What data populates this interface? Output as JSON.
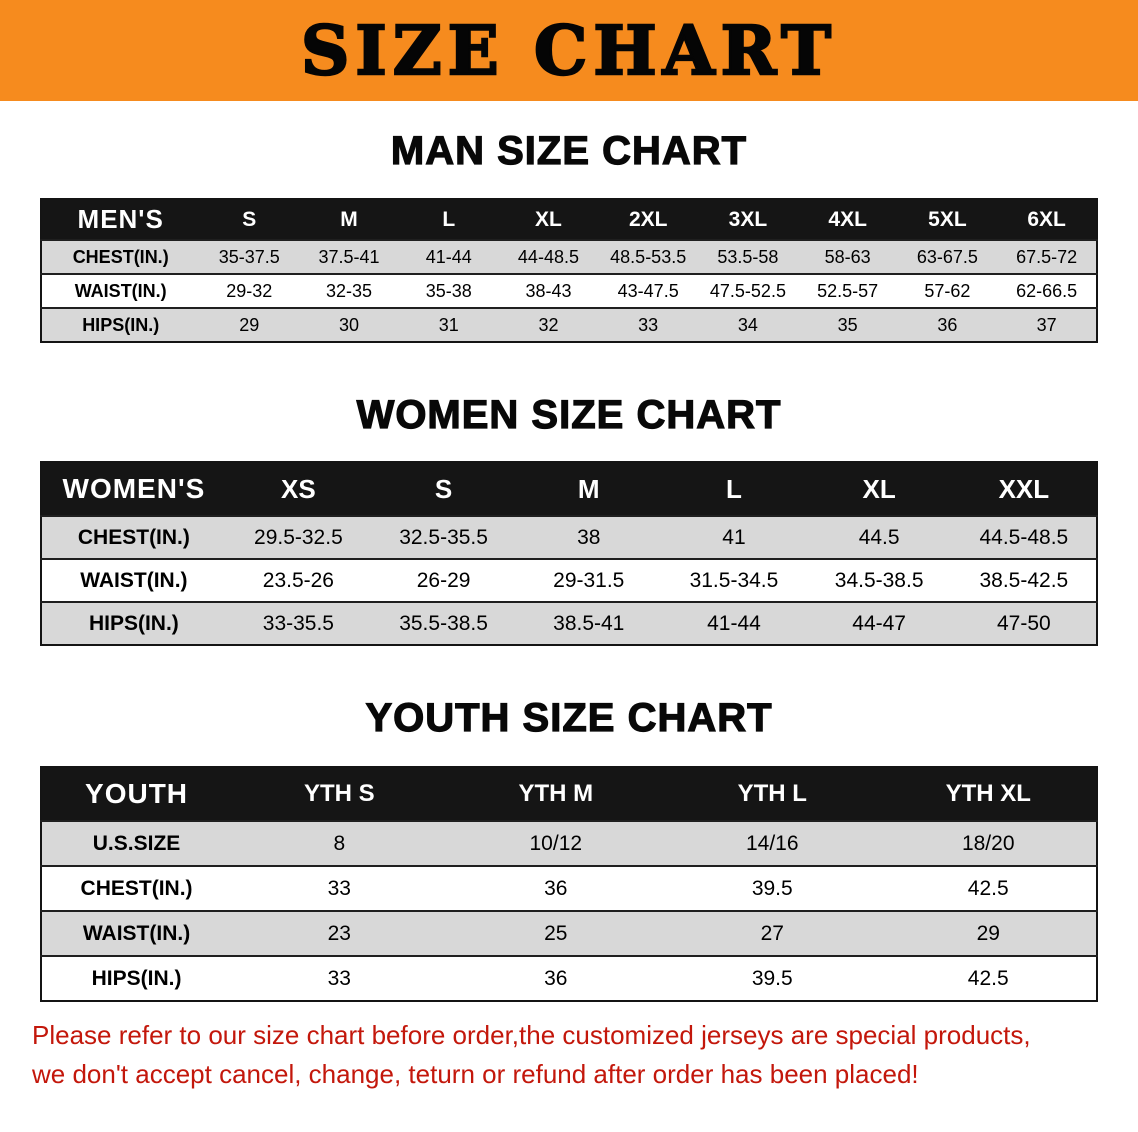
{
  "banner": {
    "title": "SIZE CHART"
  },
  "colors": {
    "banner_orange": "#f68b1e",
    "table_header_black": "#151515",
    "row_alt_gray": "#d8d8d8",
    "note_red": "#c3170b"
  },
  "sections": [
    {
      "heading": "MAN SIZE CHART",
      "table": {
        "header": [
          "MEN'S",
          "S",
          "M",
          "L",
          "XL",
          "2XL",
          "3XL",
          "4XL",
          "5XL",
          "6XL"
        ],
        "rows": [
          {
            "label": "CHEST(IN.)",
            "values": [
              "35-37.5",
              "37.5-41",
              "41-44",
              "44-48.5",
              "48.5-53.5",
              "53.5-58",
              "58-63",
              "63-67.5",
              "67.5-72"
            ]
          },
          {
            "label": "WAIST(IN.)",
            "values": [
              "29-32",
              "32-35",
              "35-38",
              "38-43",
              "43-47.5",
              "47.5-52.5",
              "52.5-57",
              "57-62",
              "62-66.5"
            ]
          },
          {
            "label": "HIPS(IN.)",
            "values": [
              "29",
              "30",
              "31",
              "32",
              "33",
              "34",
              "35",
              "36",
              "37"
            ]
          }
        ]
      }
    },
    {
      "heading": "WOMEN SIZE CHART",
      "table": {
        "header": [
          "WOMEN'S",
          "XS",
          "S",
          "M",
          "L",
          "XL",
          "XXL"
        ],
        "rows": [
          {
            "label": "CHEST(IN.)",
            "values": [
              "29.5-32.5",
              "32.5-35.5",
              "38",
              "41",
              "44.5",
              "44.5-48.5"
            ]
          },
          {
            "label": "WAIST(IN.)",
            "values": [
              "23.5-26",
              "26-29",
              "29-31.5",
              "31.5-34.5",
              "34.5-38.5",
              "38.5-42.5"
            ]
          },
          {
            "label": "HIPS(IN.)",
            "values": [
              "33-35.5",
              "35.5-38.5",
              "38.5-41",
              "41-44",
              "44-47",
              "47-50"
            ]
          }
        ]
      }
    },
    {
      "heading": "YOUTH SIZE CHART",
      "table": {
        "header": [
          "YOUTH",
          "YTH S",
          "YTH M",
          "YTH L",
          "YTH XL"
        ],
        "rows": [
          {
            "label": "U.S.SIZE",
            "values": [
              "8",
              "10/12",
              "14/16",
              "18/20"
            ]
          },
          {
            "label": "CHEST(IN.)",
            "values": [
              "33",
              "36",
              "39.5",
              "42.5"
            ]
          },
          {
            "label": "WAIST(IN.)",
            "values": [
              "23",
              "25",
              "27",
              "29"
            ]
          },
          {
            "label": "HIPS(IN.)",
            "values": [
              "33",
              "36",
              "39.5",
              "42.5"
            ]
          }
        ]
      }
    }
  ],
  "note": {
    "line1": "Please refer to our size chart before order,the customized jerseys are special products,",
    "line2": "we don't accept cancel, change, teturn or refund after order has been placed!"
  }
}
